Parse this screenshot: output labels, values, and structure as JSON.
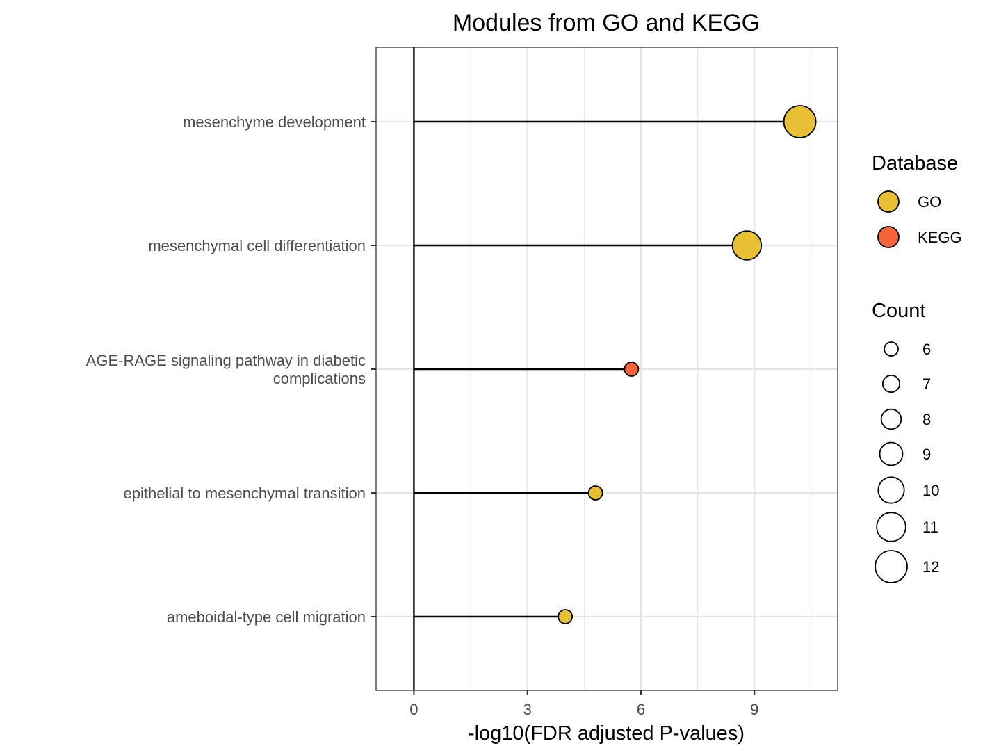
{
  "chart_data": {
    "type": "scatter",
    "subtype": "lollipop",
    "title": "Modules from GO and KEGG",
    "xlabel": "-log10(FDR adjusted P-values)",
    "ylabel": "",
    "xlim": [
      -1.0,
      11.2
    ],
    "xticks": [
      0,
      3,
      6,
      9
    ],
    "grid": true,
    "legend_position": "right",
    "categories": [
      [
        "mesenchyme development"
      ],
      [
        "mesenchymal cell differentiation"
      ],
      [
        "AGE-RAGE signaling pathway in diabetic",
        "complications"
      ],
      [
        "epithelial to mesenchymal transition"
      ],
      [
        "ameboidal-type cell migration"
      ]
    ],
    "points": [
      {
        "x": 10.2,
        "count": 12,
        "database": "GO"
      },
      {
        "x": 8.8,
        "count": 11,
        "database": "GO"
      },
      {
        "x": 5.75,
        "count": 6,
        "database": "KEGG"
      },
      {
        "x": 4.8,
        "count": 6,
        "database": "GO"
      },
      {
        "x": 4.0,
        "count": 6,
        "database": "GO"
      }
    ],
    "legend_color": {
      "title": "Database",
      "entries": [
        {
          "label": "GO",
          "color": "#E8C034"
        },
        {
          "label": "KEGG",
          "color": "#F8643A"
        }
      ]
    },
    "legend_size": {
      "title": "Count",
      "entries": [
        "6",
        "7",
        "8",
        "9",
        "10",
        "11",
        "12"
      ],
      "values": [
        6,
        7,
        8,
        9,
        10,
        11,
        12
      ]
    }
  }
}
